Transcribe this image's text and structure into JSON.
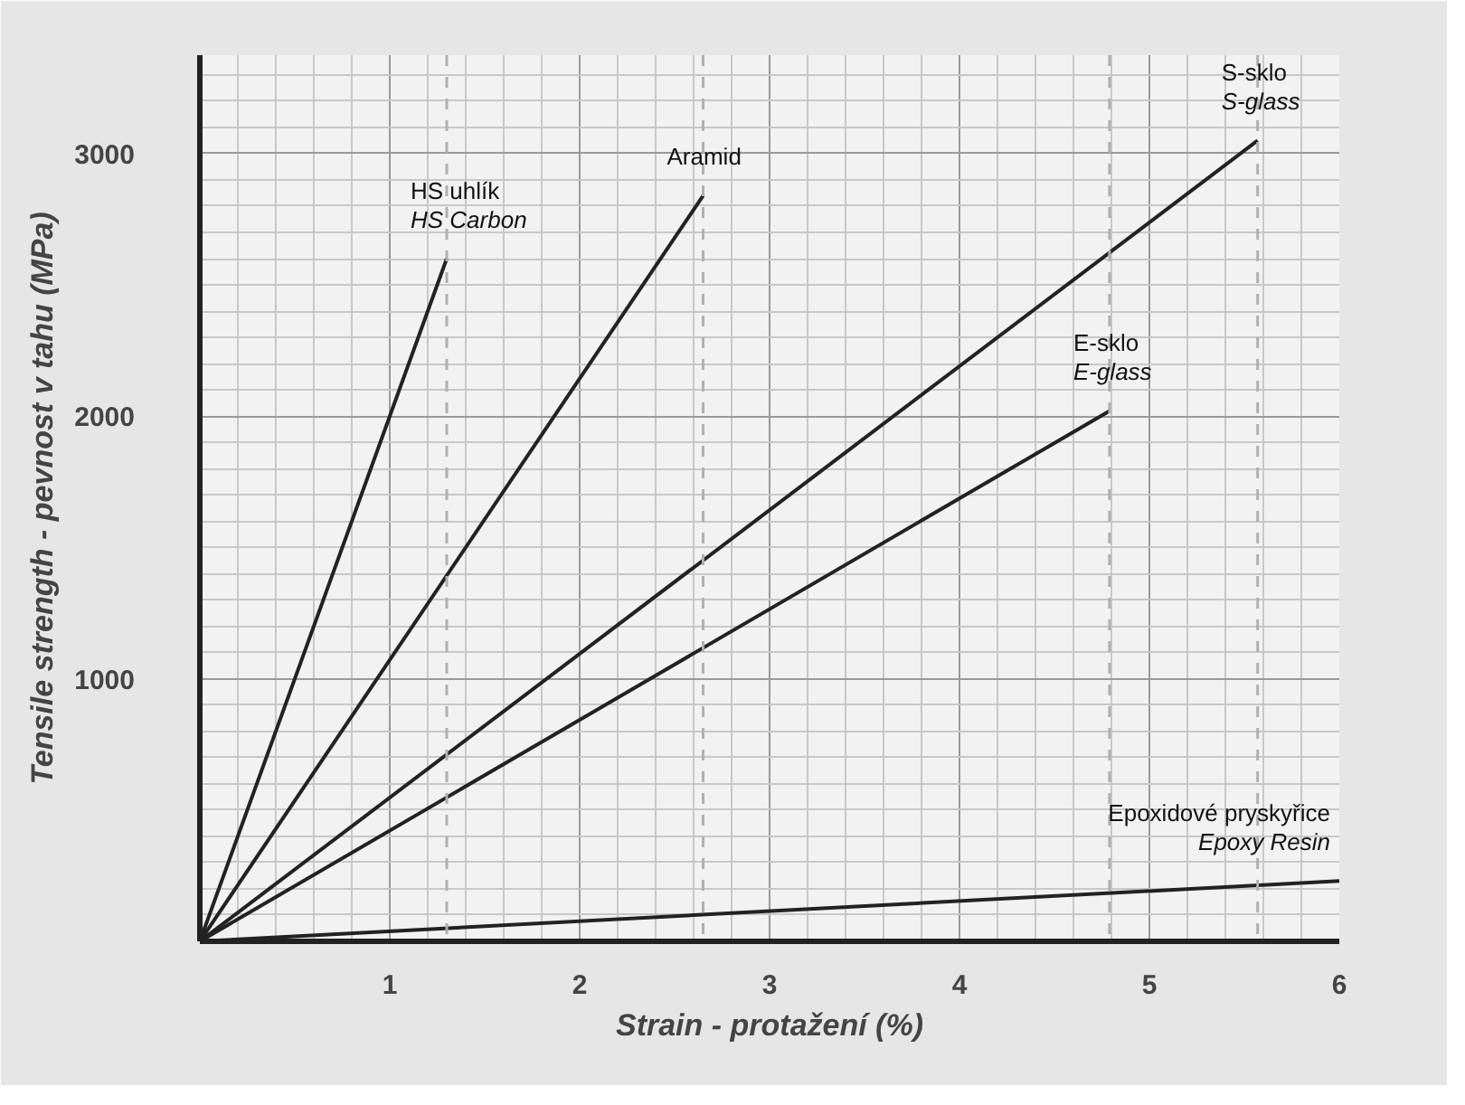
{
  "chart_data": {
    "type": "line",
    "xlabel": "Strain - protažení (%)",
    "ylabel": "Tensile strength - pevnost v tahu (MPa)",
    "xlim": [
      0,
      6
    ],
    "ylim": [
      0,
      3375
    ],
    "xticks": [
      1,
      2,
      3,
      4,
      5,
      6
    ],
    "yticks": [
      1000,
      2000,
      3000
    ],
    "grid": true,
    "marker": "none",
    "line_style": "solid",
    "series": [
      {
        "name": "HS uhlík\nHS Carbon",
        "color": "#222222",
        "x": [
          0,
          1.3
        ],
        "values": [
          0,
          2600
        ]
      },
      {
        "name": "Aramid",
        "color": "#222222",
        "x": [
          0,
          2.65
        ],
        "values": [
          0,
          2840
        ]
      },
      {
        "name": "S-sklo\nS-glass",
        "color": "#222222",
        "x": [
          0,
          5.57
        ],
        "values": [
          0,
          3050
        ]
      },
      {
        "name": "E-sklo\nE-glass",
        "color": "#222222",
        "x": [
          0,
          4.79
        ],
        "values": [
          0,
          2020
        ]
      },
      {
        "name": "Epoxidové pryskyřice\nEpoxy Resin",
        "color": "#222222",
        "x": [
          0,
          6
        ],
        "values": [
          0,
          230
        ]
      }
    ],
    "ref_lines": [
      {
        "axis": "x",
        "value": 1.3,
        "label": null,
        "color": "#b0b0b0",
        "line_style": "dashed"
      },
      {
        "axis": "x",
        "value": 2.65,
        "label": null,
        "color": "#b0b0b0",
        "line_style": "dashed"
      },
      {
        "axis": "x",
        "value": 4.79,
        "label": null,
        "color": "#b0b0b0",
        "line_style": "dashed"
      },
      {
        "axis": "x",
        "value": 5.57,
        "label": null,
        "color": "#b0b0b0",
        "line_style": "dashed"
      }
    ]
  }
}
